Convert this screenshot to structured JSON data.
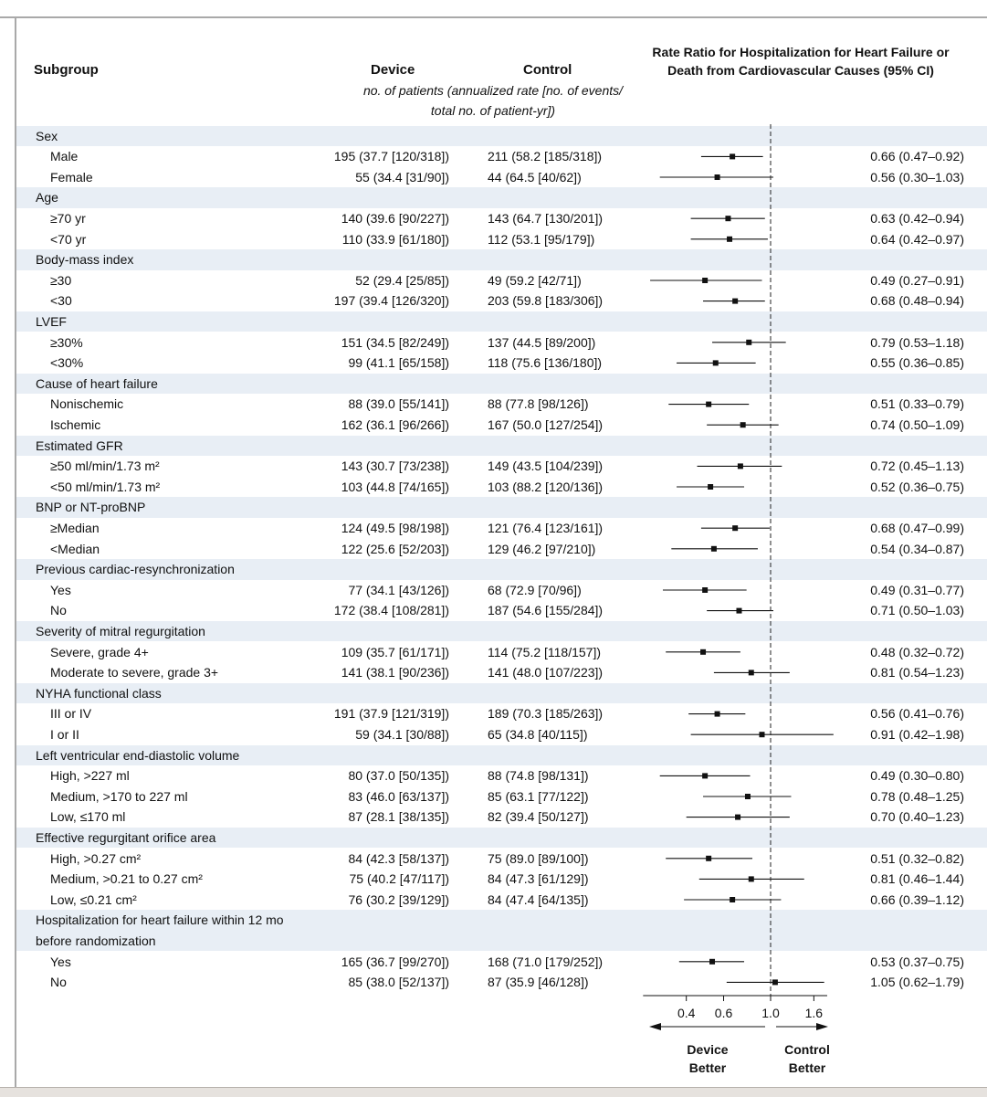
{
  "header": {
    "subgroup": "Subgroup",
    "device": "Device",
    "control": "Control",
    "units_line1": "no. of patients (annualized rate [no. of events/",
    "units_line2": "total no. of patient-yr])",
    "rate_line1": "Rate Ratio for Hospitalization for Heart Failure or",
    "rate_line2": "Death from Cardiovascular Causes (95% CI)"
  },
  "chart_data": {
    "type": "forest",
    "title": "Rate Ratio for Hospitalization for Heart Failure or Death from Cardiovascular Causes (95% CI)",
    "xscale": "log",
    "xlim": [
      0.25,
      1.85
    ],
    "xticks": [
      0.4,
      0.6,
      1.0,
      1.6
    ],
    "xtick_labels": [
      "0.4",
      "0.6",
      "1.0",
      "1.6"
    ],
    "reference_line": 1.0,
    "left_label": "Device Better",
    "right_label": "Control Better",
    "left_label_lines": [
      "Device",
      "Better"
    ],
    "right_label_lines": [
      "Control",
      "Better"
    ],
    "rows": [
      {
        "label": "Sex",
        "header": true
      },
      {
        "label": "Male",
        "device": "195 (37.7 [120/318])",
        "control": "211 (58.2 [185/318])",
        "est": 0.66,
        "lo": 0.47,
        "hi": 0.92,
        "ci": "0.66 (0.47–0.92)"
      },
      {
        "label": "Female",
        "device": "55 (34.4 [31/90])",
        "control": "44 (64.5 [40/62])",
        "est": 0.56,
        "lo": 0.3,
        "hi": 1.03,
        "ci": "0.56 (0.30–1.03)"
      },
      {
        "label": "Age",
        "header": true
      },
      {
        "label": "≥70 yr",
        "device": "140 (39.6 [90/227])",
        "control": "143 (64.7 [130/201])",
        "est": 0.63,
        "lo": 0.42,
        "hi": 0.94,
        "ci": "0.63 (0.42–0.94)"
      },
      {
        "label": "<70 yr",
        "device": "110 (33.9 [61/180])",
        "control": "112 (53.1 [95/179])",
        "est": 0.64,
        "lo": 0.42,
        "hi": 0.97,
        "ci": "0.64 (0.42–0.97)"
      },
      {
        "label": "Body-mass index",
        "header": true
      },
      {
        "label": "≥30",
        "device": "52 (29.4 [25/85])",
        "control": "49 (59.2 [42/71])",
        "est": 0.49,
        "lo": 0.27,
        "hi": 0.91,
        "ci": "0.49 (0.27–0.91)"
      },
      {
        "label": "<30",
        "device": "197 (39.4 [126/320])",
        "control": "203 (59.8 [183/306])",
        "est": 0.68,
        "lo": 0.48,
        "hi": 0.94,
        "ci": "0.68 (0.48–0.94)"
      },
      {
        "label": "LVEF",
        "header": true
      },
      {
        "label": "≥30%",
        "device": "151 (34.5 [82/249])",
        "control": "137 (44.5 [89/200])",
        "est": 0.79,
        "lo": 0.53,
        "hi": 1.18,
        "ci": "0.79 (0.53–1.18)"
      },
      {
        "label": "<30%",
        "device": "99 (41.1 [65/158])",
        "control": "118 (75.6 [136/180])",
        "est": 0.55,
        "lo": 0.36,
        "hi": 0.85,
        "ci": "0.55 (0.36–0.85)"
      },
      {
        "label": "Cause of heart failure",
        "header": true
      },
      {
        "label": "Nonischemic",
        "device": "88 (39.0 [55/141])",
        "control": "88 (77.8 [98/126])",
        "est": 0.51,
        "lo": 0.33,
        "hi": 0.79,
        "ci": "0.51 (0.33–0.79)"
      },
      {
        "label": "Ischemic",
        "device": "162 (36.1 [96/266])",
        "control": "167 (50.0 [127/254])",
        "est": 0.74,
        "lo": 0.5,
        "hi": 1.09,
        "ci": "0.74 (0.50–1.09)"
      },
      {
        "label": "Estimated GFR",
        "header": true
      },
      {
        "label": "≥50 ml/min/1.73 m²",
        "device": "143 (30.7 [73/238])",
        "control": "149 (43.5 [104/239])",
        "est": 0.72,
        "lo": 0.45,
        "hi": 1.13,
        "ci": "0.72 (0.45–1.13)"
      },
      {
        "label": "<50 ml/min/1.73 m²",
        "device": "103 (44.8 [74/165])",
        "control": "103 (88.2 [120/136])",
        "est": 0.52,
        "lo": 0.36,
        "hi": 0.75,
        "ci": "0.52 (0.36–0.75)"
      },
      {
        "label": "BNP or NT-proBNP",
        "header": true
      },
      {
        "label": "≥Median",
        "device": "124 (49.5 [98/198])",
        "control": "121 (76.4 [123/161])",
        "est": 0.68,
        "lo": 0.47,
        "hi": 0.99,
        "ci": "0.68 (0.47–0.99)"
      },
      {
        "label": "<Median",
        "device": "122 (25.6 [52/203])",
        "control": "129 (46.2 [97/210])",
        "est": 0.54,
        "lo": 0.34,
        "hi": 0.87,
        "ci": "0.54 (0.34–0.87)"
      },
      {
        "label": "Previous cardiac-resynchronization",
        "header": true
      },
      {
        "label": "Yes",
        "device": "77 (34.1 [43/126])",
        "control": "68 (72.9 [70/96])",
        "est": 0.49,
        "lo": 0.31,
        "hi": 0.77,
        "ci": "0.49 (0.31–0.77)"
      },
      {
        "label": "No",
        "device": "172 (38.4 [108/281])",
        "control": "187 (54.6 [155/284])",
        "est": 0.71,
        "lo": 0.5,
        "hi": 1.03,
        "ci": "0.71 (0.50–1.03)"
      },
      {
        "label": "Severity of mitral regurgitation",
        "header": true
      },
      {
        "label": "Severe, grade 4+",
        "device": "109 (35.7 [61/171])",
        "control": "114 (75.2 [118/157])",
        "est": 0.48,
        "lo": 0.32,
        "hi": 0.72,
        "ci": "0.48 (0.32–0.72)"
      },
      {
        "label": "Moderate to severe, grade 3+",
        "device": "141 (38.1 [90/236])",
        "control": "141 (48.0 [107/223])",
        "est": 0.81,
        "lo": 0.54,
        "hi": 1.23,
        "ci": "0.81 (0.54–1.23)"
      },
      {
        "label": "NYHA functional class",
        "header": true
      },
      {
        "label": "III or IV",
        "device": "191 (37.9 [121/319])",
        "control": "189 (70.3 [185/263])",
        "est": 0.56,
        "lo": 0.41,
        "hi": 0.76,
        "ci": "0.56 (0.41–0.76)"
      },
      {
        "label": "I or II",
        "device": "59 (34.1 [30/88])",
        "control": "65 (34.8 [40/115])",
        "est": 0.91,
        "lo": 0.42,
        "hi": 1.98,
        "ci": "0.91 (0.42–1.98)"
      },
      {
        "label": "Left ventricular end-diastolic volume",
        "header": true
      },
      {
        "label": "High, >227 ml",
        "device": "80 (37.0 [50/135])",
        "control": "88 (74.8 [98/131])",
        "est": 0.49,
        "lo": 0.3,
        "hi": 0.8,
        "ci": "0.49 (0.30–0.80)"
      },
      {
        "label": "Medium, >170 to 227 ml",
        "device": "83 (46.0 [63/137])",
        "control": "85 (63.1 [77/122])",
        "est": 0.78,
        "lo": 0.48,
        "hi": 1.25,
        "ci": "0.78 (0.48–1.25)"
      },
      {
        "label": "Low, ≤170 ml",
        "device": "87 (28.1 [38/135])",
        "control": "82 (39.4 [50/127])",
        "est": 0.7,
        "lo": 0.4,
        "hi": 1.23,
        "ci": "0.70 (0.40–1.23)"
      },
      {
        "label": "Effective regurgitant orifice area",
        "header": true
      },
      {
        "label": "High, >0.27 cm²",
        "device": "84 (42.3 [58/137])",
        "control": "75 (89.0 [89/100])",
        "est": 0.51,
        "lo": 0.32,
        "hi": 0.82,
        "ci": "0.51 (0.32–0.82)"
      },
      {
        "label": "Medium, >0.21 to 0.27 cm²",
        "device": "75 (40.2 [47/117])",
        "control": "84 (47.3 [61/129])",
        "est": 0.81,
        "lo": 0.46,
        "hi": 1.44,
        "ci": "0.81 (0.46–1.44)"
      },
      {
        "label": "Low, ≤0.21 cm²",
        "device": "76 (30.2 [39/129])",
        "control": "84 (47.4 [64/135])",
        "est": 0.66,
        "lo": 0.39,
        "hi": 1.12,
        "ci": "0.66 (0.39–1.12)"
      },
      {
        "label": "Hospitalization for heart failure within 12 mo",
        "header": true
      },
      {
        "label": "before randomization",
        "header": true
      },
      {
        "label": "Yes",
        "device": "165 (36.7 [99/270])",
        "control": "168 (71.0 [179/252])",
        "est": 0.53,
        "lo": 0.37,
        "hi": 0.75,
        "ci": "0.53 (0.37–0.75)"
      },
      {
        "label": "No",
        "device": "85 (38.0 [52/137])",
        "control": "87 (35.9 [46/128])",
        "est": 1.05,
        "lo": 0.62,
        "hi": 1.79,
        "ci": "1.05 (0.62–1.79)"
      }
    ]
  }
}
